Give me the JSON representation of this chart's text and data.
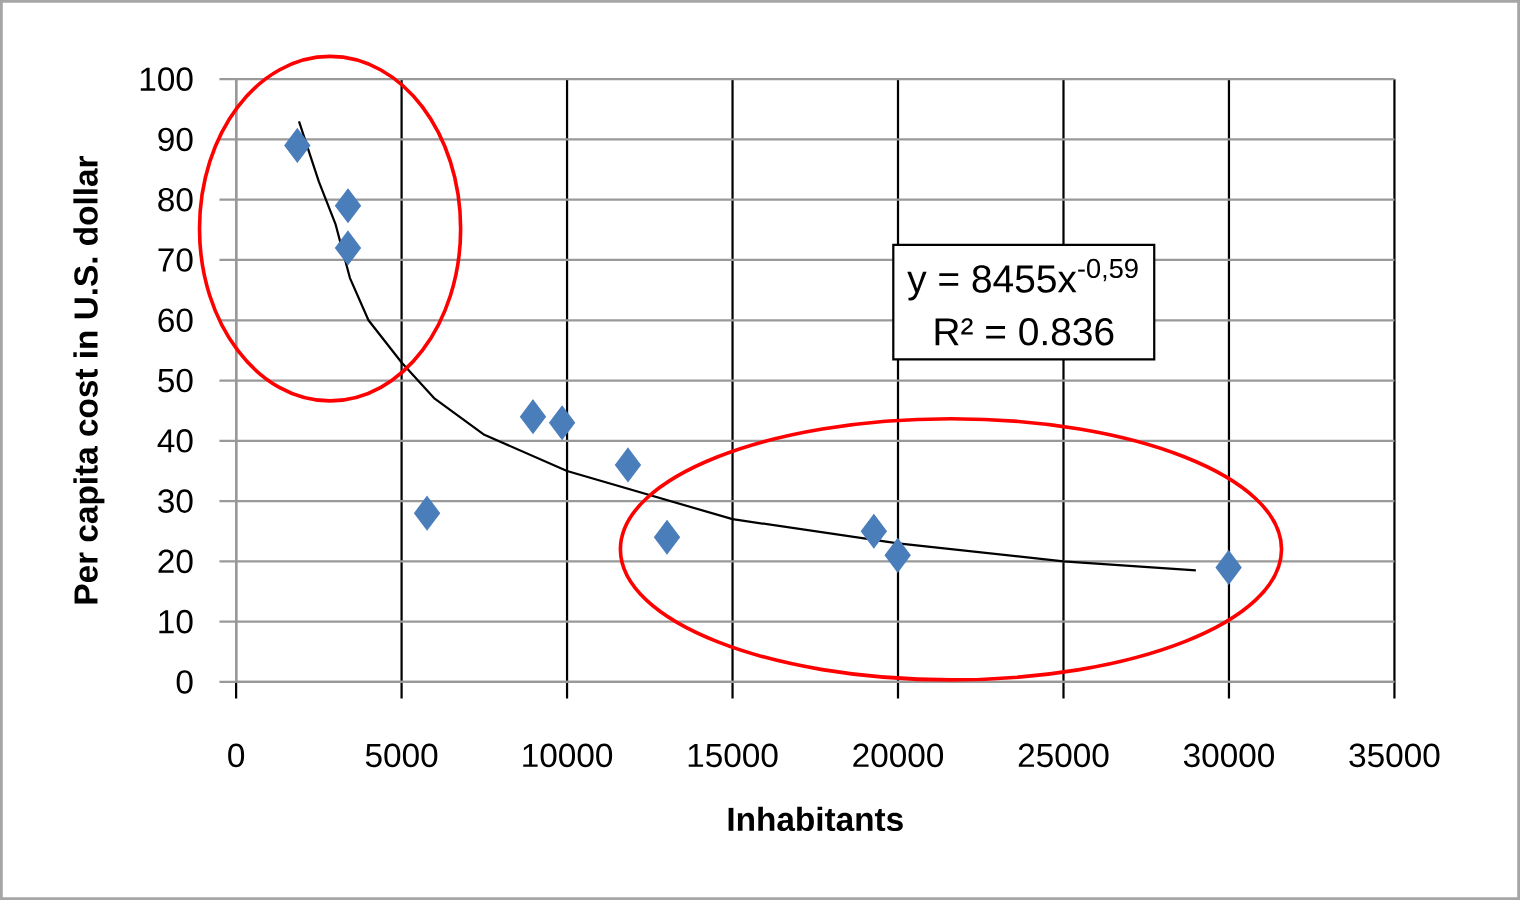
{
  "chart_data": {
    "type": "scatter",
    "xlabel": "Inhabitants",
    "ylabel": "Per capita cost in U.S. dollar",
    "xlim": [
      0,
      35000
    ],
    "xticks": [
      0,
      5000,
      10000,
      15000,
      20000,
      25000,
      30000,
      35000
    ],
    "ylim": [
      0,
      100
    ],
    "yticks": [
      0,
      10,
      20,
      30,
      40,
      50,
      60,
      70,
      80,
      90,
      100
    ],
    "grid": true,
    "annotations": [
      "y = 8455x$^{-0,59}$",
      "R² = 0.836"
    ],
    "series": [
      {
        "marker": "diamond",
        "color": "#4a7ebb",
        "x": [
          1850,
          3380,
          3380,
          5770,
          8970,
          9850,
          11840,
          13020,
          19270,
          19990,
          29990
        ],
        "values": [
          89,
          79,
          72,
          28,
          44,
          43,
          36,
          24,
          25,
          21,
          19
        ]
      },
      {
        "type": "line",
        "color": "#000000",
        "x": [
          1900,
          2500,
          3000,
          3440,
          4000,
          5000,
          6000,
          7500,
          10000,
          12500,
          15000,
          20000,
          25000,
          29000
        ],
        "values": [
          93,
          83,
          76,
          67,
          60,
          53,
          47,
          41,
          35,
          31,
          27,
          23,
          20,
          18.5
        ]
      }
    ]
  }
}
